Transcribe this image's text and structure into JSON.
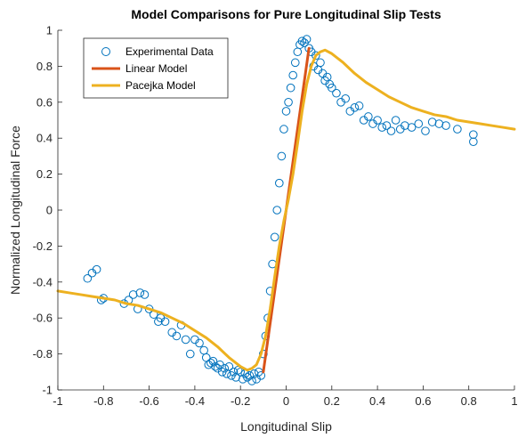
{
  "chart_data": {
    "type": "scatter",
    "title": "Model Comparisons for Pure Longitudinal Slip Tests",
    "xlabel": "Longitudinal Slip",
    "ylabel": "Normalized Longitudinal Force",
    "xlim": [
      -1,
      1
    ],
    "ylim": [
      -1,
      1
    ],
    "xticks": [
      -1,
      -0.8,
      -0.6,
      -0.4,
      -0.2,
      0,
      0.2,
      0.4,
      0.6,
      0.8,
      1
    ],
    "yticks": [
      -1,
      -0.8,
      -0.6,
      -0.4,
      -0.2,
      0,
      0.2,
      0.4,
      0.6,
      0.8,
      1
    ],
    "xtick_labels": [
      "-1",
      "-0.8",
      "-0.6",
      "-0.4",
      "-0.2",
      "0",
      "0.2",
      "0.4",
      "0.6",
      "0.8",
      "1"
    ],
    "ytick_labels": [
      "-1",
      "-0.8",
      "-0.6",
      "-0.4",
      "-0.2",
      "0",
      "0.2",
      "0.4",
      "0.6",
      "0.8",
      "1"
    ],
    "grid": false,
    "legend_position": "top-left",
    "series": [
      {
        "name": "Experimental Data",
        "kind": "scatter",
        "color": "#0072BD",
        "x": [
          -0.87,
          -0.85,
          -0.83,
          -0.81,
          -0.8,
          -0.71,
          -0.69,
          -0.67,
          -0.65,
          -0.64,
          -0.62,
          -0.6,
          -0.58,
          -0.56,
          -0.55,
          -0.53,
          -0.5,
          -0.48,
          -0.46,
          -0.44,
          -0.42,
          -0.4,
          -0.38,
          -0.36,
          -0.35,
          -0.34,
          -0.33,
          -0.32,
          -0.31,
          -0.3,
          -0.29,
          -0.28,
          -0.27,
          -0.26,
          -0.25,
          -0.24,
          -0.23,
          -0.22,
          -0.21,
          -0.2,
          -0.19,
          -0.18,
          -0.17,
          -0.16,
          -0.15,
          -0.14,
          -0.13,
          -0.12,
          -0.11,
          -0.1,
          -0.09,
          -0.08,
          -0.07,
          -0.06,
          -0.05,
          -0.04,
          -0.03,
          -0.02,
          -0.01,
          0.0,
          0.01,
          0.02,
          0.03,
          0.04,
          0.05,
          0.06,
          0.07,
          0.08,
          0.09,
          0.1,
          0.11,
          0.12,
          0.13,
          0.14,
          0.15,
          0.16,
          0.17,
          0.18,
          0.19,
          0.2,
          0.22,
          0.24,
          0.26,
          0.28,
          0.3,
          0.32,
          0.34,
          0.36,
          0.38,
          0.4,
          0.42,
          0.44,
          0.46,
          0.48,
          0.5,
          0.52,
          0.55,
          0.58,
          0.61,
          0.64,
          0.67,
          0.7,
          0.75,
          0.82,
          0.82
        ],
        "y": [
          -0.38,
          -0.35,
          -0.33,
          -0.5,
          -0.49,
          -0.52,
          -0.5,
          -0.47,
          -0.55,
          -0.46,
          -0.47,
          -0.55,
          -0.58,
          -0.62,
          -0.6,
          -0.62,
          -0.68,
          -0.7,
          -0.64,
          -0.72,
          -0.8,
          -0.72,
          -0.74,
          -0.78,
          -0.82,
          -0.86,
          -0.85,
          -0.84,
          -0.87,
          -0.88,
          -0.86,
          -0.9,
          -0.88,
          -0.91,
          -0.87,
          -0.92,
          -0.9,
          -0.93,
          -0.89,
          -0.9,
          -0.94,
          -0.91,
          -0.93,
          -0.92,
          -0.95,
          -0.91,
          -0.94,
          -0.9,
          -0.92,
          -0.8,
          -0.7,
          -0.6,
          -0.45,
          -0.3,
          -0.15,
          0.0,
          0.15,
          0.3,
          0.45,
          0.55,
          0.6,
          0.68,
          0.75,
          0.82,
          0.88,
          0.92,
          0.94,
          0.93,
          0.95,
          0.9,
          0.88,
          0.8,
          0.86,
          0.78,
          0.82,
          0.76,
          0.72,
          0.74,
          0.7,
          0.68,
          0.65,
          0.6,
          0.62,
          0.55,
          0.57,
          0.58,
          0.5,
          0.52,
          0.48,
          0.5,
          0.46,
          0.47,
          0.44,
          0.5,
          0.45,
          0.47,
          0.46,
          0.48,
          0.44,
          0.49,
          0.48,
          0.47,
          0.45,
          0.42,
          0.38
        ]
      },
      {
        "name": "Linear Model",
        "kind": "line",
        "color": "#D95319",
        "x": [
          -0.1,
          0.1
        ],
        "y": [
          -0.9,
          0.9
        ]
      },
      {
        "name": "Pacejka Model",
        "kind": "line",
        "color": "#EDB120",
        "x": [
          -1,
          -0.95,
          -0.9,
          -0.85,
          -0.8,
          -0.75,
          -0.7,
          -0.65,
          -0.6,
          -0.55,
          -0.5,
          -0.45,
          -0.4,
          -0.35,
          -0.3,
          -0.25,
          -0.2,
          -0.17,
          -0.15,
          -0.13,
          -0.11,
          -0.09,
          -0.07,
          -0.05,
          -0.03,
          -0.01,
          0.0,
          0.01,
          0.03,
          0.05,
          0.07,
          0.09,
          0.11,
          0.13,
          0.15,
          0.17,
          0.2,
          0.25,
          0.3,
          0.35,
          0.4,
          0.45,
          0.5,
          0.55,
          0.6,
          0.65,
          0.7,
          0.75,
          0.8,
          0.85,
          0.9,
          0.95,
          1.0
        ],
        "y": [
          -0.45,
          -0.46,
          -0.47,
          -0.48,
          -0.49,
          -0.5,
          -0.52,
          -0.53,
          -0.55,
          -0.57,
          -0.6,
          -0.63,
          -0.67,
          -0.71,
          -0.76,
          -0.82,
          -0.87,
          -0.89,
          -0.88,
          -0.86,
          -0.8,
          -0.7,
          -0.55,
          -0.37,
          -0.2,
          -0.06,
          0.0,
          0.06,
          0.2,
          0.37,
          0.55,
          0.7,
          0.8,
          0.86,
          0.88,
          0.89,
          0.87,
          0.82,
          0.76,
          0.71,
          0.67,
          0.63,
          0.6,
          0.57,
          0.55,
          0.53,
          0.52,
          0.5,
          0.49,
          0.48,
          0.47,
          0.46,
          0.45
        ]
      }
    ]
  }
}
